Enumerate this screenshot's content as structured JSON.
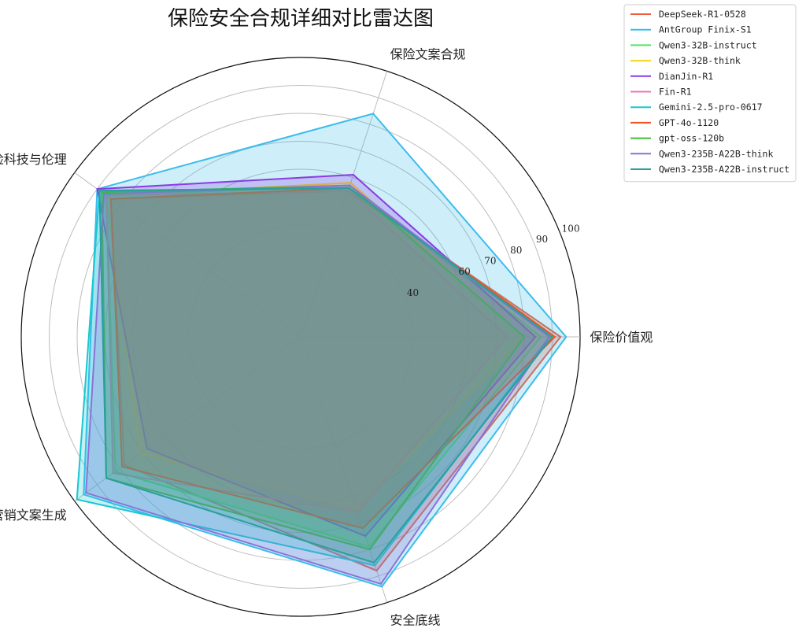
{
  "chart_data": {
    "type": "radar",
    "title": "保险安全合规详细对比雷达图",
    "axes": [
      "保险价值观",
      "保险文案合规",
      "保险科技与伦理",
      "保险营销文案生成",
      "安全底线"
    ],
    "r_ticks": [
      40,
      60,
      70,
      80,
      90,
      100
    ],
    "r_tick_labels": [
      "40",
      "60",
      "70",
      "80",
      "90",
      "100"
    ],
    "rlim": [
      0,
      100
    ],
    "grid": true,
    "legend_position": "top-right",
    "series": [
      {
        "name": "DeepSeek-R1-0528",
        "color": "#f15a3a",
        "values": [
          93,
          55,
          84,
          78,
          88
        ]
      },
      {
        "name": "AntGroup Finix-S1",
        "color": "#3bbcec",
        "values": [
          95,
          84,
          90,
          96,
          94
        ]
      },
      {
        "name": "Qwen3-32B-instruct",
        "color": "#54e363",
        "values": [
          86,
          57,
          86,
          82,
          79
        ]
      },
      {
        "name": "Qwen3-32B-think",
        "color": "#f5d31e",
        "values": [
          80,
          58,
          86,
          71,
          65
        ]
      },
      {
        "name": "DianJin-R1",
        "color": "#8b3be0",
        "values": [
          84,
          61,
          90,
          68,
          75
        ]
      },
      {
        "name": "Fin-R1",
        "color": "#ee74b8",
        "values": [
          74,
          55,
          86,
          83,
          66
        ]
      },
      {
        "name": "Gemini-2.5-pro-0617",
        "color": "#19c7d1",
        "values": [
          89,
          56,
          89,
          99,
          86
        ]
      },
      {
        "name": "GPT-4o-1120",
        "color": "#f4511e",
        "values": [
          91,
          56,
          84,
          79,
          72
        ]
      },
      {
        "name": "gpt-oss-120b",
        "color": "#3fbd3a",
        "values": [
          80,
          57,
          88,
          86,
          80
        ]
      },
      {
        "name": "Qwen3-235B-A22B-think",
        "color": "#8c72d8",
        "values": [
          89,
          57,
          87,
          95,
          93
        ]
      },
      {
        "name": "Qwen3-235B-A22B-instruct",
        "color": "#2a9f9b",
        "values": [
          90,
          56,
          89,
          86,
          85
        ]
      }
    ]
  }
}
